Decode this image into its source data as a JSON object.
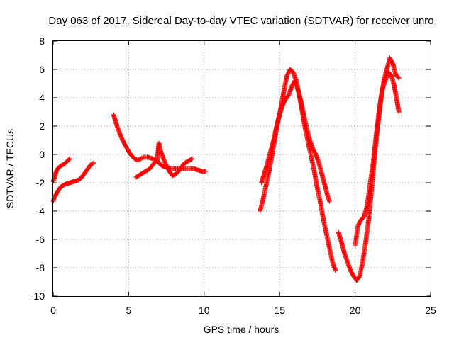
{
  "chart_data": {
    "type": "scatter",
    "title": "Day 063 of 2017, Sidereal Day-to-day VTEC variation (SDTVAR) for receiver unro",
    "xlabel": "GPS time / hours",
    "ylabel": "SDTVAR / TECUs",
    "xlim": [
      0,
      25
    ],
    "ylim": [
      -10,
      8
    ],
    "xticks": [
      0,
      5,
      10,
      15,
      20,
      25
    ],
    "yticks": [
      -10,
      -8,
      -6,
      -4,
      -2,
      0,
      2,
      4,
      6,
      8
    ],
    "grid": true,
    "marker": "plus",
    "colors": {
      "series": "#ff0000",
      "grid": "#a0a0a0",
      "axis": "#000000"
    },
    "series": [
      {
        "color": "#ff0000",
        "segments": [
          [
            [
              0.0,
              -1.9
            ],
            [
              0.1,
              -1.6
            ],
            [
              0.2,
              -1.2
            ],
            [
              0.3,
              -1.0
            ],
            [
              0.5,
              -0.8
            ],
            [
              0.7,
              -0.7
            ],
            [
              0.9,
              -0.5
            ],
            [
              1.1,
              -0.3
            ]
          ],
          [
            [
              0.0,
              -3.3
            ],
            [
              0.1,
              -3.0
            ],
            [
              0.2,
              -2.8
            ],
            [
              0.3,
              -2.6
            ],
            [
              0.5,
              -2.3
            ],
            [
              0.8,
              -2.1
            ],
            [
              1.1,
              -2.0
            ],
            [
              1.4,
              -1.9
            ],
            [
              1.7,
              -1.8
            ],
            [
              1.9,
              -1.6
            ],
            [
              2.1,
              -1.3
            ],
            [
              2.3,
              -1.0
            ],
            [
              2.5,
              -0.7
            ],
            [
              2.7,
              -0.6
            ]
          ],
          [
            [
              4.0,
              2.8
            ],
            [
              4.2,
              2.1
            ],
            [
              4.4,
              1.5
            ],
            [
              4.6,
              1.0
            ],
            [
              4.8,
              0.6
            ],
            [
              5.0,
              0.2
            ],
            [
              5.2,
              -0.1
            ],
            [
              5.4,
              -0.3
            ],
            [
              5.6,
              -0.4
            ],
            [
              5.8,
              -0.3
            ],
            [
              6.0,
              -0.2
            ],
            [
              6.3,
              -0.2
            ],
            [
              6.6,
              -0.3
            ],
            [
              6.8,
              -0.4
            ],
            [
              7.0,
              -0.6
            ],
            [
              7.2,
              -0.8
            ],
            [
              7.5,
              -0.9
            ],
            [
              7.8,
              -1.0
            ],
            [
              8.1,
              -1.0
            ],
            [
              8.4,
              -1.0
            ],
            [
              8.7,
              -1.0
            ],
            [
              9.0,
              -1.0
            ],
            [
              9.3,
              -1.0
            ],
            [
              9.6,
              -1.1
            ],
            [
              9.9,
              -1.2
            ],
            [
              10.1,
              -1.2
            ]
          ],
          [
            [
              5.5,
              -1.6
            ],
            [
              5.8,
              -1.4
            ],
            [
              6.1,
              -1.2
            ],
            [
              6.4,
              -1.0
            ],
            [
              6.7,
              -0.6
            ],
            [
              6.9,
              -0.4
            ],
            [
              7.0,
              0.8
            ],
            [
              7.1,
              0.3
            ],
            [
              7.3,
              -0.3
            ],
            [
              7.5,
              -0.8
            ],
            [
              7.7,
              -1.2
            ],
            [
              7.9,
              -1.5
            ],
            [
              8.1,
              -1.4
            ],
            [
              8.3,
              -1.2
            ],
            [
              8.5,
              -0.9
            ],
            [
              8.7,
              -0.6
            ],
            [
              8.9,
              -0.5
            ],
            [
              9.2,
              -0.3
            ]
          ],
          [
            [
              13.8,
              -2.0
            ],
            [
              14.0,
              -1.3
            ],
            [
              14.2,
              -0.6
            ],
            [
              14.4,
              0.2
            ],
            [
              14.6,
              1.0
            ],
            [
              14.8,
              2.0
            ],
            [
              15.0,
              2.8
            ],
            [
              15.2,
              3.5
            ],
            [
              15.4,
              3.9
            ],
            [
              15.6,
              4.2
            ],
            [
              15.8,
              4.8
            ],
            [
              16.0,
              5.2
            ],
            [
              16.2,
              4.6
            ],
            [
              16.4,
              3.8
            ],
            [
              16.6,
              2.8
            ],
            [
              16.8,
              1.8
            ],
            [
              17.0,
              1.0
            ],
            [
              17.2,
              0.4
            ],
            [
              17.4,
              0.0
            ],
            [
              17.6,
              -0.6
            ],
            [
              17.8,
              -1.4
            ],
            [
              18.0,
              -2.2
            ],
            [
              18.2,
              -3.0
            ],
            [
              18.3,
              -3.3
            ]
          ],
          [
            [
              13.7,
              -4.0
            ],
            [
              13.9,
              -3.2
            ],
            [
              14.1,
              -2.2
            ],
            [
              14.3,
              -1.2
            ],
            [
              14.5,
              0.0
            ],
            [
              14.7,
              1.2
            ],
            [
              14.9,
              2.4
            ],
            [
              15.1,
              3.4
            ],
            [
              15.3,
              4.6
            ],
            [
              15.5,
              5.6
            ],
            [
              15.7,
              6.0
            ],
            [
              15.9,
              5.8
            ],
            [
              16.1,
              5.2
            ],
            [
              16.3,
              4.2
            ],
            [
              16.5,
              3.0
            ],
            [
              16.7,
              1.8
            ],
            [
              16.9,
              0.8
            ],
            [
              17.1,
              -0.2
            ],
            [
              17.3,
              -1.2
            ],
            [
              17.5,
              -2.4
            ],
            [
              17.7,
              -3.4
            ],
            [
              17.9,
              -4.6
            ],
            [
              18.1,
              -5.6
            ],
            [
              18.3,
              -6.6
            ],
            [
              18.5,
              -7.6
            ],
            [
              18.7,
              -8.2
            ]
          ],
          [
            [
              18.9,
              -5.5
            ],
            [
              19.1,
              -6.2
            ],
            [
              19.3,
              -7.0
            ],
            [
              19.5,
              -7.6
            ],
            [
              19.7,
              -8.2
            ],
            [
              19.9,
              -8.6
            ],
            [
              20.1,
              -8.9
            ],
            [
              20.3,
              -8.6
            ],
            [
              20.5,
              -7.6
            ],
            [
              20.7,
              -6.2
            ],
            [
              20.9,
              -4.6
            ],
            [
              21.1,
              -2.4
            ],
            [
              21.3,
              0.0
            ],
            [
              21.5,
              2.0
            ],
            [
              21.7,
              3.8
            ],
            [
              21.9,
              5.2
            ],
            [
              22.1,
              6.0
            ],
            [
              22.3,
              6.8
            ],
            [
              22.5,
              6.4
            ],
            [
              22.7,
              5.6
            ],
            [
              22.9,
              5.4
            ]
          ],
          [
            [
              20.0,
              -6.4
            ],
            [
              20.2,
              -5.0
            ],
            [
              20.4,
              -4.6
            ],
            [
              20.6,
              -4.4
            ],
            [
              20.8,
              -3.6
            ],
            [
              21.0,
              -2.0
            ],
            [
              21.2,
              -0.6
            ],
            [
              21.4,
              1.4
            ],
            [
              21.6,
              3.2
            ],
            [
              21.8,
              4.6
            ],
            [
              22.0,
              5.2
            ],
            [
              22.2,
              5.8
            ],
            [
              22.4,
              5.6
            ],
            [
              22.6,
              4.8
            ],
            [
              22.8,
              3.6
            ],
            [
              22.9,
              3.0
            ]
          ]
        ]
      }
    ]
  }
}
